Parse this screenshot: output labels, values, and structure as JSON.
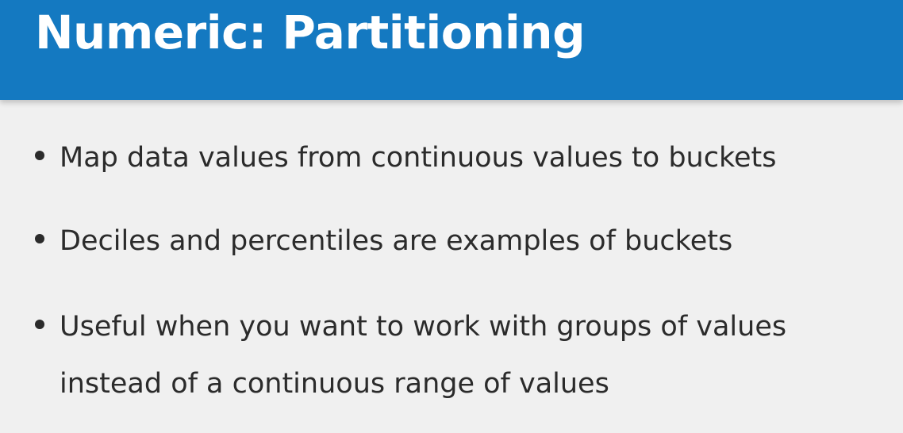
{
  "slide": {
    "title": "Numeric: Partitioning",
    "bullets": [
      {
        "text": "Map data values from continuous values to buckets"
      },
      {
        "text": "Deciles and percentiles are examples of buckets"
      },
      {
        "text": "Useful when you want to work with groups of values instead of a continuous range of values"
      }
    ],
    "colors": {
      "header_background": "#1479c1",
      "header_text": "#ffffff",
      "body_background": "#f0f0f0",
      "body_text": "#2b2b2b"
    }
  }
}
